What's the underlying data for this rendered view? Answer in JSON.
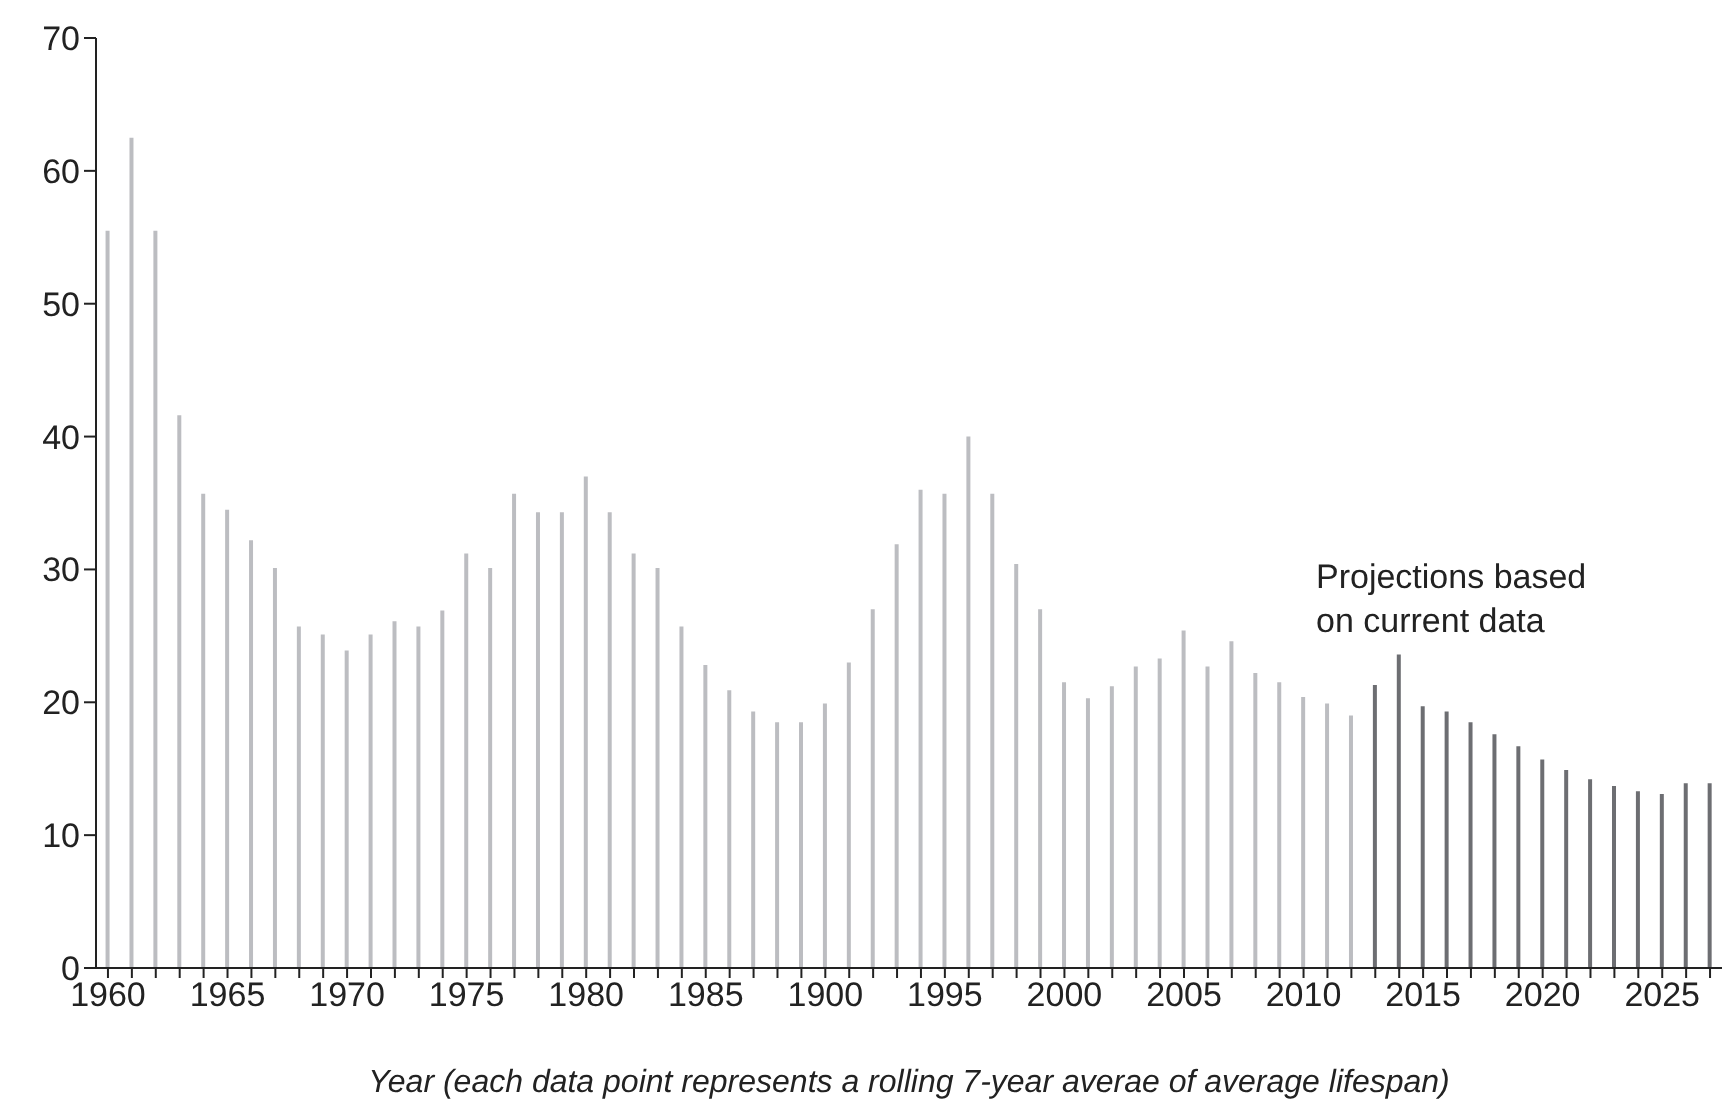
{
  "chart_data": {
    "type": "bar",
    "xlabel": "Year (each data point represents a rolling 7-year averae of average lifespan)",
    "categories": [
      "1960",
      null,
      null,
      null,
      null,
      "1965",
      null,
      null,
      null,
      null,
      "1970",
      null,
      null,
      null,
      null,
      "1975",
      null,
      null,
      null,
      null,
      "1980",
      null,
      null,
      null,
      null,
      "1985",
      null,
      null,
      null,
      null,
      "1900",
      null,
      null,
      null,
      null,
      "1995",
      null,
      null,
      null,
      null,
      "2000",
      null,
      null,
      null,
      null,
      "2005",
      null,
      null,
      null,
      null,
      "2010",
      null,
      null,
      null,
      null,
      "2015",
      null,
      null,
      null,
      null,
      "2020",
      null,
      null,
      null,
      null,
      "2025",
      null,
      null
    ],
    "values": [
      55.5,
      62.5,
      55.5,
      41.6,
      35.7,
      34.5,
      32.2,
      30.1,
      25.7,
      25.1,
      23.9,
      25.1,
      26.1,
      25.7,
      26.9,
      31.2,
      30.1,
      35.7,
      34.3,
      34.3,
      37.0,
      34.3,
      31.2,
      30.1,
      25.7,
      22.8,
      20.9,
      19.3,
      18.5,
      18.5,
      19.9,
      23.0,
      27.0,
      31.9,
      36.0,
      35.7,
      40.0,
      35.7,
      30.4,
      27.0,
      21.5,
      20.3,
      21.2,
      22.7,
      23.3,
      25.4,
      22.7,
      24.6,
      22.2,
      21.5,
      20.4,
      19.9,
      19.0,
      21.3,
      23.6,
      19.7,
      19.3,
      18.5,
      17.6,
      16.7,
      15.7,
      14.9,
      14.2,
      13.7,
      13.3,
      13.1,
      13.9,
      13.9
    ],
    "colors": [
      "#bcbdc1",
      "#bcbdc1",
      "#bcbdc1",
      "#bcbdc1",
      "#bcbdc1",
      "#bcbdc1",
      "#bcbdc1",
      "#bcbdc1",
      "#bcbdc1",
      "#bcbdc1",
      "#bcbdc1",
      "#bcbdc1",
      "#bcbdc1",
      "#bcbdc1",
      "#bcbdc1",
      "#bcbdc1",
      "#bcbdc1",
      "#bcbdc1",
      "#bcbdc1",
      "#bcbdc1",
      "#bcbdc1",
      "#bcbdc1",
      "#bcbdc1",
      "#bcbdc1",
      "#bcbdc1",
      "#bcbdc1",
      "#bcbdc1",
      "#bcbdc1",
      "#bcbdc1",
      "#bcbdc1",
      "#bcbdc1",
      "#bcbdc1",
      "#bcbdc1",
      "#bcbdc1",
      "#bcbdc1",
      "#bcbdc1",
      "#bcbdc1",
      "#bcbdc1",
      "#bcbdc1",
      "#bcbdc1",
      "#bcbdc1",
      "#bcbdc1",
      "#bcbdc1",
      "#bcbdc1",
      "#bcbdc1",
      "#bcbdc1",
      "#bcbdc1",
      "#bcbdc1",
      "#bcbdc1",
      "#bcbdc1",
      "#bcbdc1",
      "#bcbdc1",
      "#bcbdc1",
      "#6d6e72",
      "#6d6e72",
      "#6d6e72",
      "#6d6e72",
      "#6d6e72",
      "#6d6e72",
      "#6d6e72",
      "#6d6e72",
      "#6d6e72",
      "#6d6e72",
      "#6d6e72",
      "#6d6e72",
      "#6d6e72",
      "#6d6e72",
      "#6d6e72"
    ],
    "ylim": [
      0,
      70
    ],
    "yticks": [
      0,
      10,
      20,
      30,
      40,
      50,
      60,
      70
    ],
    "grid": false,
    "legend": false,
    "annotations": [
      "Projections based\non current data"
    ]
  }
}
